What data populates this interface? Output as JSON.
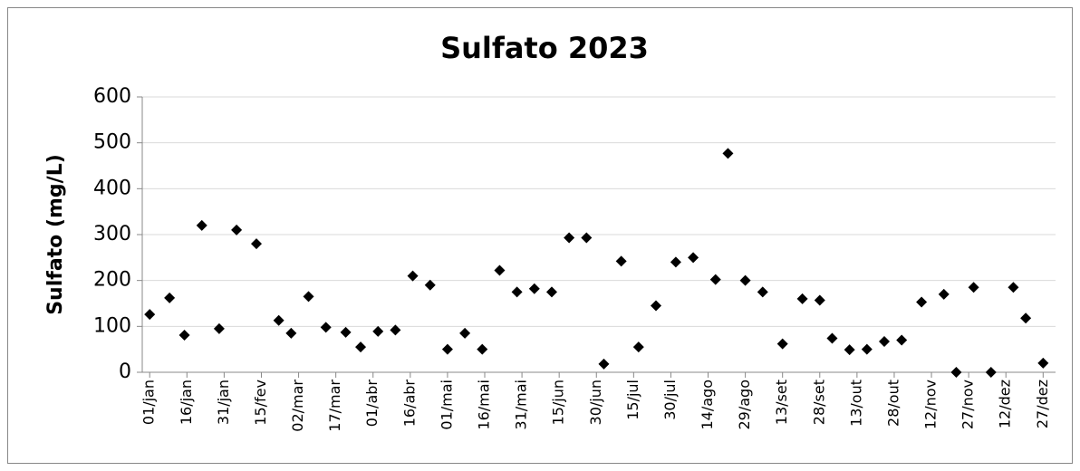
{
  "chart_data": {
    "type": "scatter",
    "title": "Sulfato 2023",
    "y_label": "Sulfato (mg/L)",
    "x": [
      1,
      9,
      15,
      22,
      29,
      36,
      44,
      53,
      58,
      65,
      72,
      80,
      86,
      93,
      100,
      107,
      114,
      121,
      128,
      135,
      142,
      149,
      156,
      163,
      170,
      177,
      184,
      191,
      198,
      205,
      213,
      220,
      229,
      234,
      241,
      248,
      256,
      264,
      271,
      276,
      283,
      290,
      297,
      304,
      312,
      321,
      326,
      333,
      340,
      349,
      354,
      361
    ],
    "series": [
      {
        "color": "#000000",
        "marker": "diamond",
        "values": [
          126,
          162,
          81,
          320,
          95,
          310,
          280,
          113,
          85,
          165,
          98,
          87,
          55,
          89,
          92,
          210,
          190,
          50,
          85,
          50,
          222,
          175,
          182,
          175,
          293,
          293,
          18,
          242,
          55,
          145,
          240,
          250,
          202,
          477,
          200,
          175,
          62,
          160,
          157,
          74,
          49,
          50,
          67,
          70,
          153,
          170,
          0,
          185,
          0,
          185,
          118,
          20
        ]
      }
    ],
    "xlim": [
      -2,
      366
    ],
    "xticks": [
      {
        "value": 1,
        "label": "01/jan"
      },
      {
        "value": 16,
        "label": "16/jan"
      },
      {
        "value": 31,
        "label": "31/jan"
      },
      {
        "value": 46,
        "label": "15/fev"
      },
      {
        "value": 61,
        "label": "02/mar"
      },
      {
        "value": 76,
        "label": "17/mar"
      },
      {
        "value": 91,
        "label": "01/abr"
      },
      {
        "value": 106,
        "label": "16/abr"
      },
      {
        "value": 121,
        "label": "01/mai"
      },
      {
        "value": 136,
        "label": "16/mai"
      },
      {
        "value": 151,
        "label": "31/mai"
      },
      {
        "value": 166,
        "label": "15/jun"
      },
      {
        "value": 181,
        "label": "30/jun"
      },
      {
        "value": 196,
        "label": "15/jul"
      },
      {
        "value": 211,
        "label": "30/jul"
      },
      {
        "value": 226,
        "label": "14/ago"
      },
      {
        "value": 241,
        "label": "29/ago"
      },
      {
        "value": 256,
        "label": "13/set"
      },
      {
        "value": 271,
        "label": "28/set"
      },
      {
        "value": 286,
        "label": "13/out"
      },
      {
        "value": 301,
        "label": "28/out"
      },
      {
        "value": 316,
        "label": "12/nov"
      },
      {
        "value": 331,
        "label": "27/nov"
      },
      {
        "value": 346,
        "label": "12/dez"
      },
      {
        "value": 361,
        "label": "27/dez"
      }
    ],
    "ylim": [
      0,
      600
    ],
    "yticks": [
      0,
      100,
      200,
      300,
      400,
      500,
      600
    ],
    "grid": true
  }
}
